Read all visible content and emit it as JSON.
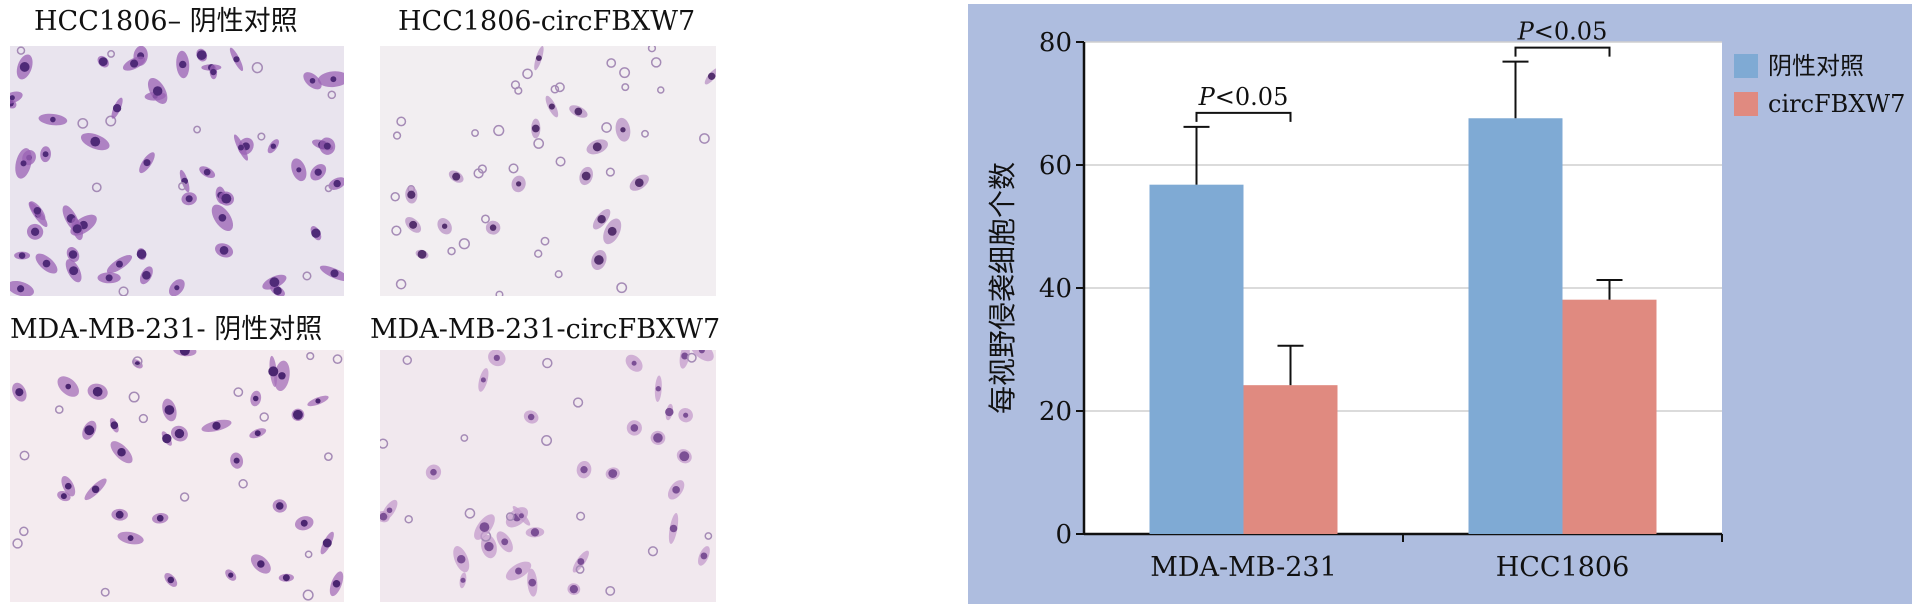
{
  "micrographs": [
    {
      "label": "HCC1806– 阴性对照",
      "palette": "dense"
    },
    {
      "label": "HCC1806-circFBXW7",
      "palette": "sparse"
    },
    {
      "label": "MDA-MB-231- 阴性对照",
      "palette": "medium"
    },
    {
      "label": "MDA-MB-231-circFBXW7",
      "palette": "faint"
    }
  ],
  "chart_data": {
    "type": "bar",
    "title": "",
    "xlabel": "",
    "ylabel": "每视野侵袭细胞个数",
    "categories": [
      "MDA-MB-231",
      "HCC1806"
    ],
    "series": [
      {
        "name": "阴性对照",
        "values": [
          56.8,
          67.6
        ],
        "errors": [
          9.4,
          9.2
        ],
        "color": "#7faad4"
      },
      {
        "name": "circFBXW7",
        "values": [
          24.2,
          38.1
        ],
        "errors": [
          6.4,
          3.2
        ],
        "color": "#e08a80"
      }
    ],
    "ylim": [
      0,
      80
    ],
    "yticks": [
      "0",
      "20",
      "40",
      "60",
      "80"
    ],
    "grid": true,
    "legend_position": "right",
    "annotations": [
      {
        "category": "MDA-MB-231",
        "text": "P<0.05"
      },
      {
        "category": "HCC1806",
        "text": "P<0.05"
      }
    ],
    "panel_background": "#aebddf",
    "plot_background": "#ffffff"
  }
}
